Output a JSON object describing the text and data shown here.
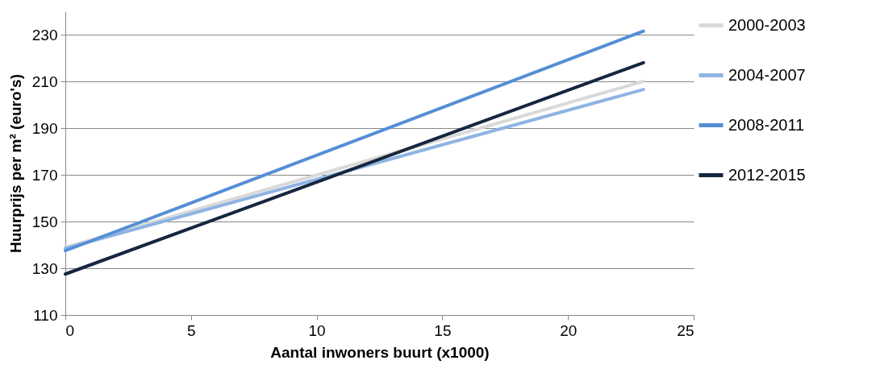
{
  "chart_data": {
    "type": "line",
    "xlabel": "Aantal inwoners buurt (x1000)",
    "ylabel": "Huurprijs per m² (euro's)",
    "x": [
      0,
      23
    ],
    "series": [
      {
        "name": "2000-2003",
        "color": "#d9d9d9",
        "values": [
          139,
          210
        ]
      },
      {
        "name": "2004-2007",
        "color": "#8eb4e3",
        "values": [
          138.5,
          206.5
        ]
      },
      {
        "name": "2008-2011",
        "color": "#558ed5",
        "values": [
          137.5,
          231.5
        ]
      },
      {
        "name": "2012-2015",
        "color": "#17263f",
        "values": [
          127.5,
          218
        ]
      }
    ],
    "xlim": [
      0,
      25
    ],
    "xticks": [
      0,
      5,
      10,
      15,
      20,
      25
    ],
    "ylim": [
      110,
      240
    ],
    "yticks": [
      110,
      130,
      150,
      170,
      190,
      210,
      230
    ],
    "grid": "y",
    "legend": "right",
    "marker": "none",
    "line_style": "solid"
  }
}
